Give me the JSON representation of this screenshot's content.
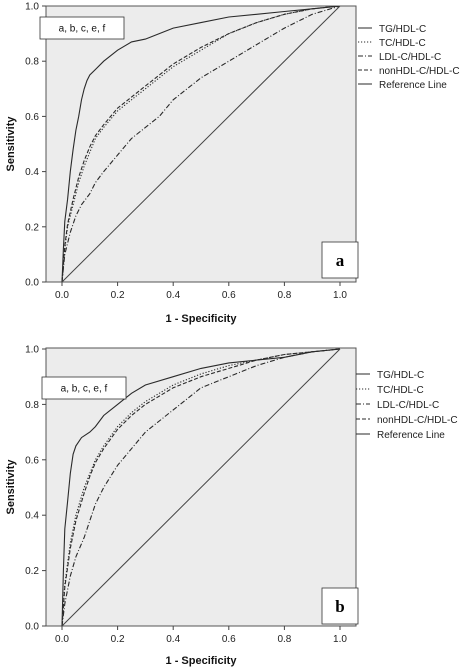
{
  "chart_data": [
    {
      "type": "line",
      "panel_label": "a",
      "annotation": "a, b, c, e, f",
      "xlabel": "1 - Specificity",
      "ylabel": "Sensitivity",
      "xlim": [
        0,
        1
      ],
      "ylim": [
        0,
        1
      ],
      "xticks": [
        "0.0",
        "0.2",
        "0.4",
        "0.6",
        "0.8",
        "1.0"
      ],
      "yticks": [
        "0.0",
        "0.2",
        "0.4",
        "0.6",
        "0.8",
        "1.0"
      ],
      "grid": false,
      "legend_position": "right",
      "series": [
        {
          "name": "TG/HDL-C",
          "style": "solid",
          "x": [
            0,
            0.005,
            0.01,
            0.02,
            0.03,
            0.04,
            0.05,
            0.06,
            0.07,
            0.08,
            0.09,
            0.1,
            0.12,
            0.15,
            0.2,
            0.25,
            0.3,
            0.35,
            0.4,
            0.5,
            0.6,
            0.7,
            0.8,
            0.9,
            1.0
          ],
          "y": [
            0,
            0.12,
            0.22,
            0.3,
            0.4,
            0.48,
            0.55,
            0.6,
            0.66,
            0.7,
            0.73,
            0.75,
            0.77,
            0.8,
            0.84,
            0.87,
            0.88,
            0.9,
            0.92,
            0.94,
            0.96,
            0.97,
            0.98,
            0.99,
            1.0
          ]
        },
        {
          "name": "TC/HDL-C",
          "style": "dotted",
          "x": [
            0,
            0.01,
            0.02,
            0.04,
            0.06,
            0.08,
            0.1,
            0.12,
            0.15,
            0.2,
            0.25,
            0.3,
            0.35,
            0.4,
            0.5,
            0.6,
            0.7,
            0.8,
            0.9,
            1.0
          ],
          "y": [
            0,
            0.12,
            0.2,
            0.28,
            0.36,
            0.42,
            0.47,
            0.52,
            0.56,
            0.62,
            0.66,
            0.7,
            0.74,
            0.78,
            0.84,
            0.9,
            0.94,
            0.97,
            0.99,
            1.0
          ]
        },
        {
          "name": "LDL-C/HDL-C",
          "style": "dashdot",
          "x": [
            0,
            0.01,
            0.03,
            0.05,
            0.07,
            0.1,
            0.12,
            0.15,
            0.2,
            0.25,
            0.3,
            0.35,
            0.4,
            0.45,
            0.5,
            0.6,
            0.7,
            0.8,
            0.9,
            1.0
          ],
          "y": [
            0,
            0.1,
            0.18,
            0.24,
            0.28,
            0.32,
            0.36,
            0.4,
            0.46,
            0.52,
            0.56,
            0.6,
            0.66,
            0.7,
            0.74,
            0.8,
            0.86,
            0.92,
            0.97,
            1.0
          ]
        },
        {
          "name": "nonHDL-C/HDL-C",
          "style": "dashed",
          "x": [
            0,
            0.01,
            0.02,
            0.04,
            0.06,
            0.08,
            0.1,
            0.12,
            0.15,
            0.2,
            0.25,
            0.3,
            0.35,
            0.4,
            0.5,
            0.6,
            0.7,
            0.8,
            0.9,
            1.0
          ],
          "y": [
            0,
            0.13,
            0.21,
            0.3,
            0.38,
            0.44,
            0.49,
            0.53,
            0.57,
            0.63,
            0.67,
            0.71,
            0.75,
            0.79,
            0.85,
            0.9,
            0.94,
            0.97,
            0.99,
            1.0
          ]
        },
        {
          "name": "Reference Line",
          "style": "solid",
          "x": [
            0,
            1
          ],
          "y": [
            0,
            1
          ]
        }
      ]
    },
    {
      "type": "line",
      "panel_label": "b",
      "annotation": "a, b, c, e, f",
      "xlabel": "1 - Specificity",
      "ylabel": "Sensitivity",
      "xlim": [
        0,
        1
      ],
      "ylim": [
        0,
        1
      ],
      "xticks": [
        "0.0",
        "0.2",
        "0.4",
        "0.6",
        "0.8",
        "1.0"
      ],
      "yticks": [
        "0.0",
        "0.2",
        "0.4",
        "0.6",
        "0.8",
        "1.0"
      ],
      "grid": false,
      "legend_position": "right",
      "series": [
        {
          "name": "TG/HDL-C",
          "style": "solid",
          "x": [
            0,
            0.005,
            0.01,
            0.02,
            0.03,
            0.04,
            0.05,
            0.07,
            0.1,
            0.12,
            0.15,
            0.2,
            0.25,
            0.3,
            0.4,
            0.5,
            0.6,
            0.7,
            0.8,
            0.9,
            1.0
          ],
          "y": [
            0,
            0.2,
            0.35,
            0.45,
            0.55,
            0.62,
            0.65,
            0.68,
            0.7,
            0.72,
            0.76,
            0.8,
            0.84,
            0.87,
            0.9,
            0.93,
            0.95,
            0.96,
            0.97,
            0.99,
            1.0
          ]
        },
        {
          "name": "TC/HDL-C",
          "style": "dotted",
          "x": [
            0,
            0.01,
            0.03,
            0.05,
            0.08,
            0.1,
            0.12,
            0.15,
            0.2,
            0.25,
            0.3,
            0.35,
            0.4,
            0.5,
            0.6,
            0.7,
            0.8,
            0.9,
            1.0
          ],
          "y": [
            0,
            0.15,
            0.3,
            0.4,
            0.5,
            0.55,
            0.6,
            0.65,
            0.72,
            0.77,
            0.81,
            0.84,
            0.87,
            0.91,
            0.94,
            0.96,
            0.98,
            0.99,
            1.0
          ]
        },
        {
          "name": "LDL-C/HDL-C",
          "style": "dashdot",
          "x": [
            0,
            0.01,
            0.03,
            0.05,
            0.08,
            0.1,
            0.12,
            0.15,
            0.2,
            0.25,
            0.3,
            0.35,
            0.4,
            0.45,
            0.5,
            0.6,
            0.7,
            0.8,
            0.9,
            1.0
          ],
          "y": [
            0,
            0.08,
            0.18,
            0.25,
            0.32,
            0.38,
            0.44,
            0.5,
            0.58,
            0.64,
            0.7,
            0.74,
            0.78,
            0.82,
            0.86,
            0.9,
            0.94,
            0.97,
            0.99,
            1.0
          ]
        },
        {
          "name": "nonHDL-C/HDL-C",
          "style": "dashed",
          "x": [
            0,
            0.01,
            0.03,
            0.05,
            0.08,
            0.1,
            0.12,
            0.15,
            0.2,
            0.25,
            0.3,
            0.35,
            0.4,
            0.5,
            0.6,
            0.7,
            0.8,
            0.9,
            1.0
          ],
          "y": [
            0,
            0.14,
            0.28,
            0.38,
            0.48,
            0.54,
            0.59,
            0.64,
            0.71,
            0.76,
            0.8,
            0.83,
            0.86,
            0.9,
            0.93,
            0.96,
            0.98,
            0.99,
            1.0
          ]
        },
        {
          "name": "Reference Line",
          "style": "solid",
          "x": [
            0,
            1
          ],
          "y": [
            0,
            1
          ]
        }
      ]
    }
  ]
}
